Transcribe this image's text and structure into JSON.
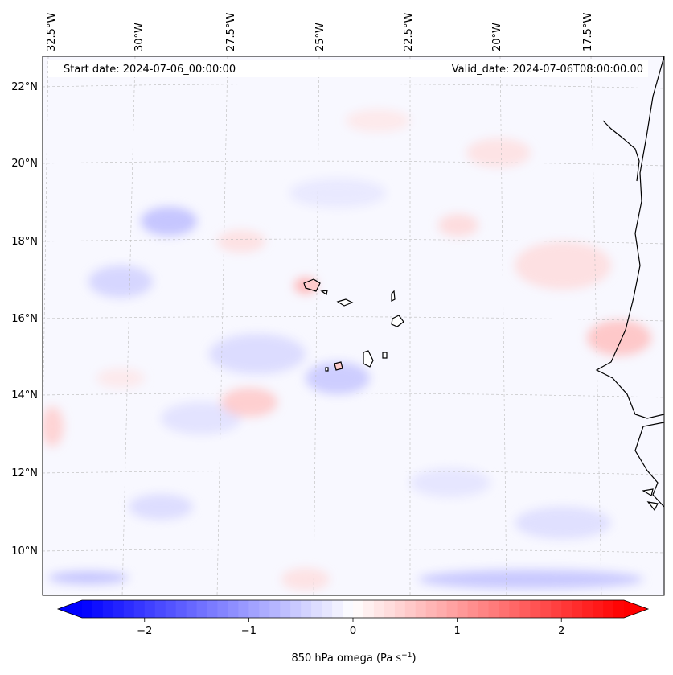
{
  "map": {
    "start_date": "Start date: 2024-07-06_00:00:00",
    "valid_date": "Valid_date: 2024-07-06T08:00:00.00",
    "lon_labels": [
      "32.5°W",
      "30°W",
      "27.5°W",
      "25°W",
      "22.5°W",
      "20°W",
      "17.5°W"
    ],
    "lat_labels": [
      "22°N",
      "20°N",
      "18°N",
      "16°N",
      "14°N",
      "12°N",
      "10°N"
    ],
    "field": "850 hPa omega",
    "colors": {
      "negative": "#0000ff",
      "positive": "#ff0000",
      "neutral": "#ffffff",
      "coast": "#000000",
      "grid": "#bbbbbb"
    }
  },
  "colorbar": {
    "ticks": [
      "−2",
      "−1",
      "0",
      "1",
      "2"
    ],
    "tick_values": [
      -2,
      -1,
      0,
      1,
      2
    ],
    "min": -2.6,
    "max": 2.6,
    "label_main": "850 hPa omega (Pa s",
    "label_exp": "−1",
    "label_end": ")"
  }
}
